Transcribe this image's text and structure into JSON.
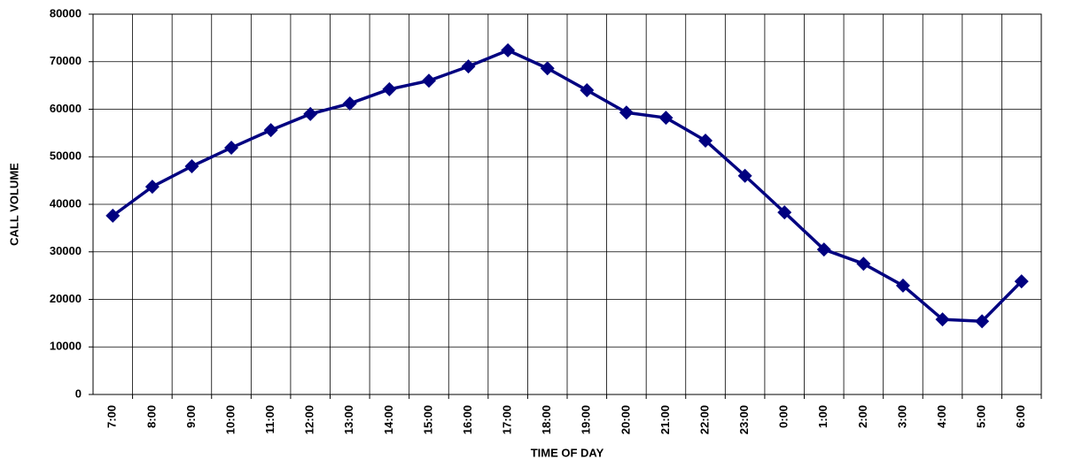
{
  "chart_data": {
    "type": "line",
    "x_label": "TIME OF DAY",
    "y_label": "CALL VOLUME",
    "categories": [
      "7:00",
      "8:00",
      "9:00",
      "10:00",
      "11:00",
      "12:00",
      "13:00",
      "14:00",
      "15:00",
      "16:00",
      "17:00",
      "18:00",
      "19:00",
      "20:00",
      "21:00",
      "22:00",
      "23:00",
      "0:00",
      "1:00",
      "2:00",
      "3:00",
      "4:00",
      "5:00",
      "6:00"
    ],
    "series": [
      {
        "color": "#000080",
        "values": [
          37600,
          43700,
          48000,
          51900,
          55600,
          59000,
          61200,
          64200,
          66000,
          69000,
          72400,
          68600,
          64000,
          59300,
          58200,
          53400,
          46000,
          38300,
          30500,
          27500,
          22900,
          15800,
          15400,
          23800
        ]
      }
    ],
    "ylim": [
      0,
      80000
    ],
    "yticks": [
      0,
      10000,
      20000,
      30000,
      40000,
      50000,
      60000,
      70000,
      80000
    ],
    "grid": true
  }
}
